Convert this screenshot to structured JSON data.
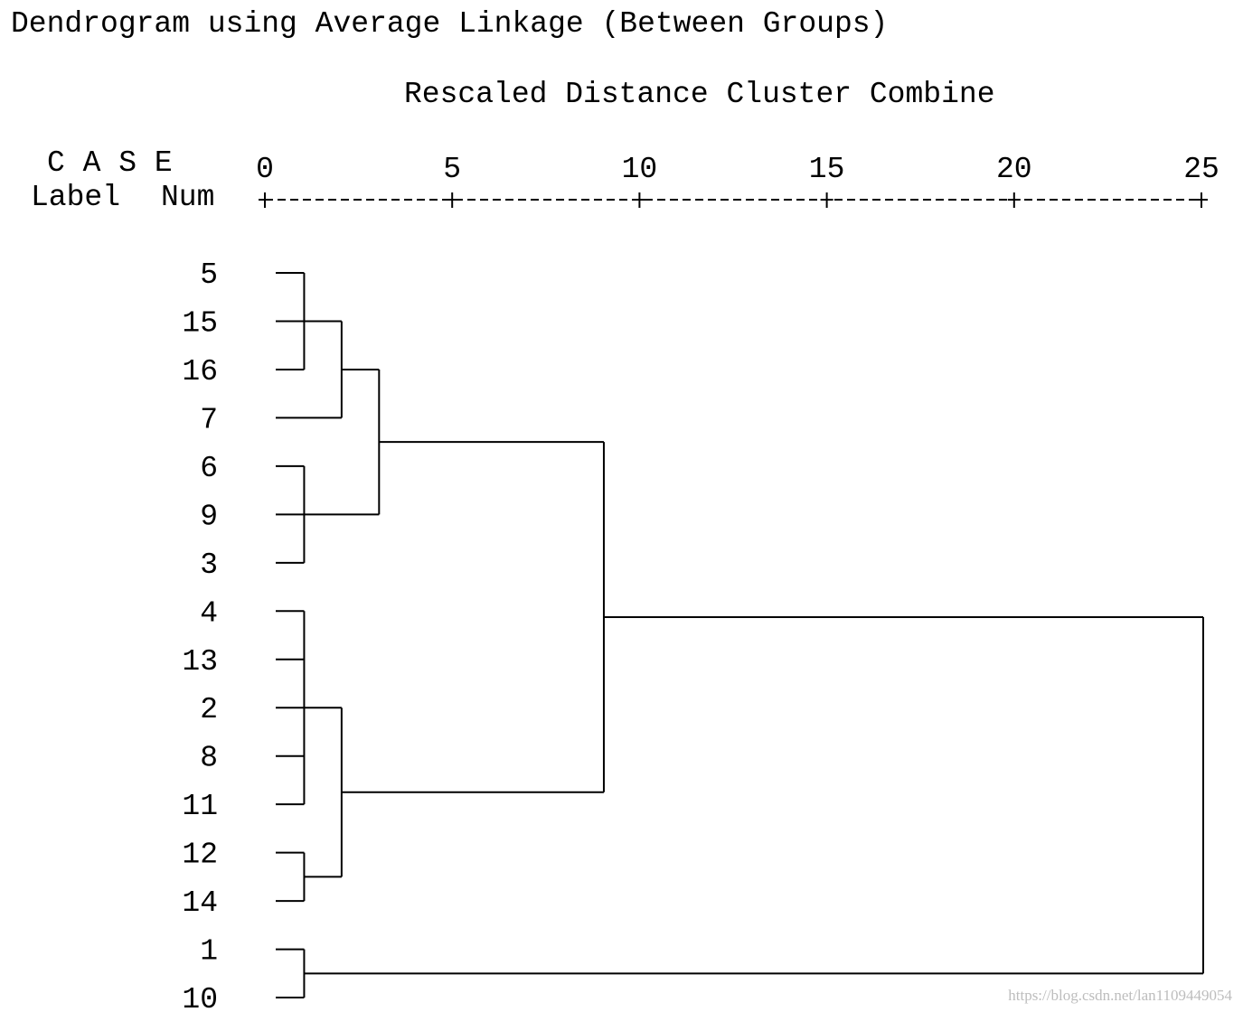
{
  "title": "Dendrogram using Average Linkage (Between Groups)",
  "subtitle": "Rescaled Distance Cluster Combine",
  "header": {
    "case": "C A S E",
    "label": "Label",
    "num": "Num"
  },
  "watermark": "https://blog.csdn.net/lan1109449054",
  "chart_data": {
    "type": "dendrogram",
    "title": "Dendrogram using Average Linkage (Between Groups)",
    "xlabel": "Rescaled Distance Cluster Combine",
    "xlim": [
      0,
      25
    ],
    "x_ticks": [
      0,
      5,
      10,
      15,
      20,
      25
    ],
    "leaf_order": [
      "5",
      "15",
      "16",
      "7",
      "6",
      "9",
      "3",
      "4",
      "13",
      "2",
      "8",
      "11",
      "12",
      "14",
      "1",
      "10"
    ],
    "merges": [
      {
        "id": "A",
        "children": [
          "5",
          "15",
          "16"
        ],
        "distance": 1
      },
      {
        "id": "B",
        "children": [
          "A",
          "7"
        ],
        "distance": 2
      },
      {
        "id": "C",
        "children": [
          "6",
          "9",
          "3"
        ],
        "distance": 1
      },
      {
        "id": "D",
        "children": [
          "B",
          "C"
        ],
        "distance": 3
      },
      {
        "id": "E",
        "children": [
          "4",
          "13",
          "2",
          "8",
          "11"
        ],
        "distance": 1
      },
      {
        "id": "F",
        "children": [
          "12",
          "14"
        ],
        "distance": 1
      },
      {
        "id": "G",
        "children": [
          "E",
          "F"
        ],
        "distance": 2
      },
      {
        "id": "H",
        "children": [
          "D",
          "G"
        ],
        "distance": 9
      },
      {
        "id": "I",
        "children": [
          "1",
          "10"
        ],
        "distance": 1
      },
      {
        "id": "J",
        "children": [
          "H",
          "I"
        ],
        "distance": 25
      }
    ]
  }
}
